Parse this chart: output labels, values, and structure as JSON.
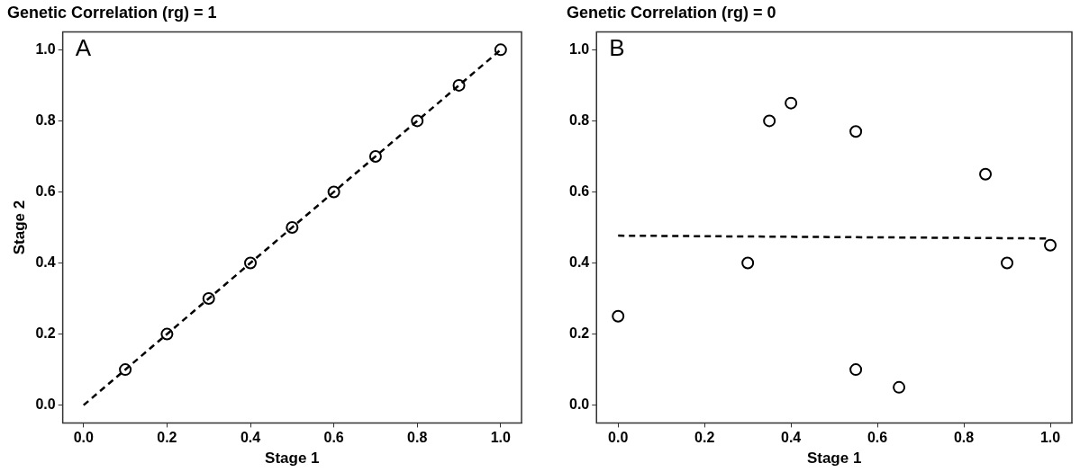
{
  "chart_data": [
    {
      "type": "scatter",
      "title": "Genetic Correlation (rg) = 1",
      "xlabel": "Stage 1",
      "ylabel": "Stage 2",
      "annotations": [
        "A"
      ],
      "xlim": [
        -0.05,
        1.05
      ],
      "ylim": [
        -0.05,
        1.05
      ],
      "xticks": [
        {
          "value": 0,
          "label": "0.0"
        },
        {
          "value": 0.2,
          "label": "0.2"
        },
        {
          "value": 0.4,
          "label": "0.4"
        },
        {
          "value": 0.6,
          "label": "0.6"
        },
        {
          "value": 0.8,
          "label": "0.8"
        },
        {
          "value": 1,
          "label": "1.0"
        }
      ],
      "yticks": [
        {
          "value": 0,
          "label": "0.0"
        },
        {
          "value": 0.2,
          "label": "0.2"
        },
        {
          "value": 0.4,
          "label": "0.4"
        },
        {
          "value": 0.6,
          "label": "0.6"
        },
        {
          "value": 0.8,
          "label": "0.8"
        },
        {
          "value": 1,
          "label": "1.0"
        }
      ],
      "grid": false,
      "legend": false,
      "series": [
        {
          "type": "line",
          "color": "#000000",
          "line_style": "dashed",
          "marker": "none",
          "x": [
            0,
            1
          ],
          "values": [
            0,
            1
          ]
        },
        {
          "color": "#000000",
          "marker": "circle",
          "x": [
            0.1,
            0.2,
            0.3,
            0.4,
            0.5,
            0.6,
            0.7,
            0.8,
            0.9,
            1.0
          ],
          "values": [
            0.1,
            0.2,
            0.3,
            0.4,
            0.5,
            0.6,
            0.7,
            0.8,
            0.9,
            1.0
          ]
        }
      ]
    },
    {
      "type": "scatter",
      "title": "Genetic Correlation (rg) = 0",
      "xlabel": "Stage 1",
      "annotations": [
        "B"
      ],
      "xlim": [
        -0.05,
        1.05
      ],
      "ylim": [
        -0.05,
        1.05
      ],
      "xticks": [
        {
          "value": 0,
          "label": "0.0"
        },
        {
          "value": 0.2,
          "label": "0.2"
        },
        {
          "value": 0.4,
          "label": "0.4"
        },
        {
          "value": 0.6,
          "label": "0.6"
        },
        {
          "value": 0.8,
          "label": "0.8"
        },
        {
          "value": 1,
          "label": "1.0"
        }
      ],
      "yticks": [
        {
          "value": 0,
          "label": "0.0"
        },
        {
          "value": 0.2,
          "label": "0.2"
        },
        {
          "value": 0.4,
          "label": "0.4"
        },
        {
          "value": 0.6,
          "label": "0.6"
        },
        {
          "value": 0.8,
          "label": "0.8"
        },
        {
          "value": 1,
          "label": "1.0"
        }
      ],
      "grid": false,
      "legend": false,
      "series": [
        {
          "type": "line",
          "color": "#000000",
          "line_style": "dashed",
          "marker": "none",
          "x": [
            0,
            1
          ],
          "values": [
            0.477,
            0.469
          ]
        },
        {
          "color": "#000000",
          "marker": "circle",
          "x": [
            0,
            0.3,
            0.35,
            0.4,
            0.55,
            0.55,
            0.65,
            0.85,
            0.9,
            1.0
          ],
          "values": [
            0.25,
            0.4,
            0.8,
            0.85,
            0.77,
            0.1,
            0.05,
            0.65,
            0.4,
            0.45
          ]
        }
      ]
    }
  ]
}
